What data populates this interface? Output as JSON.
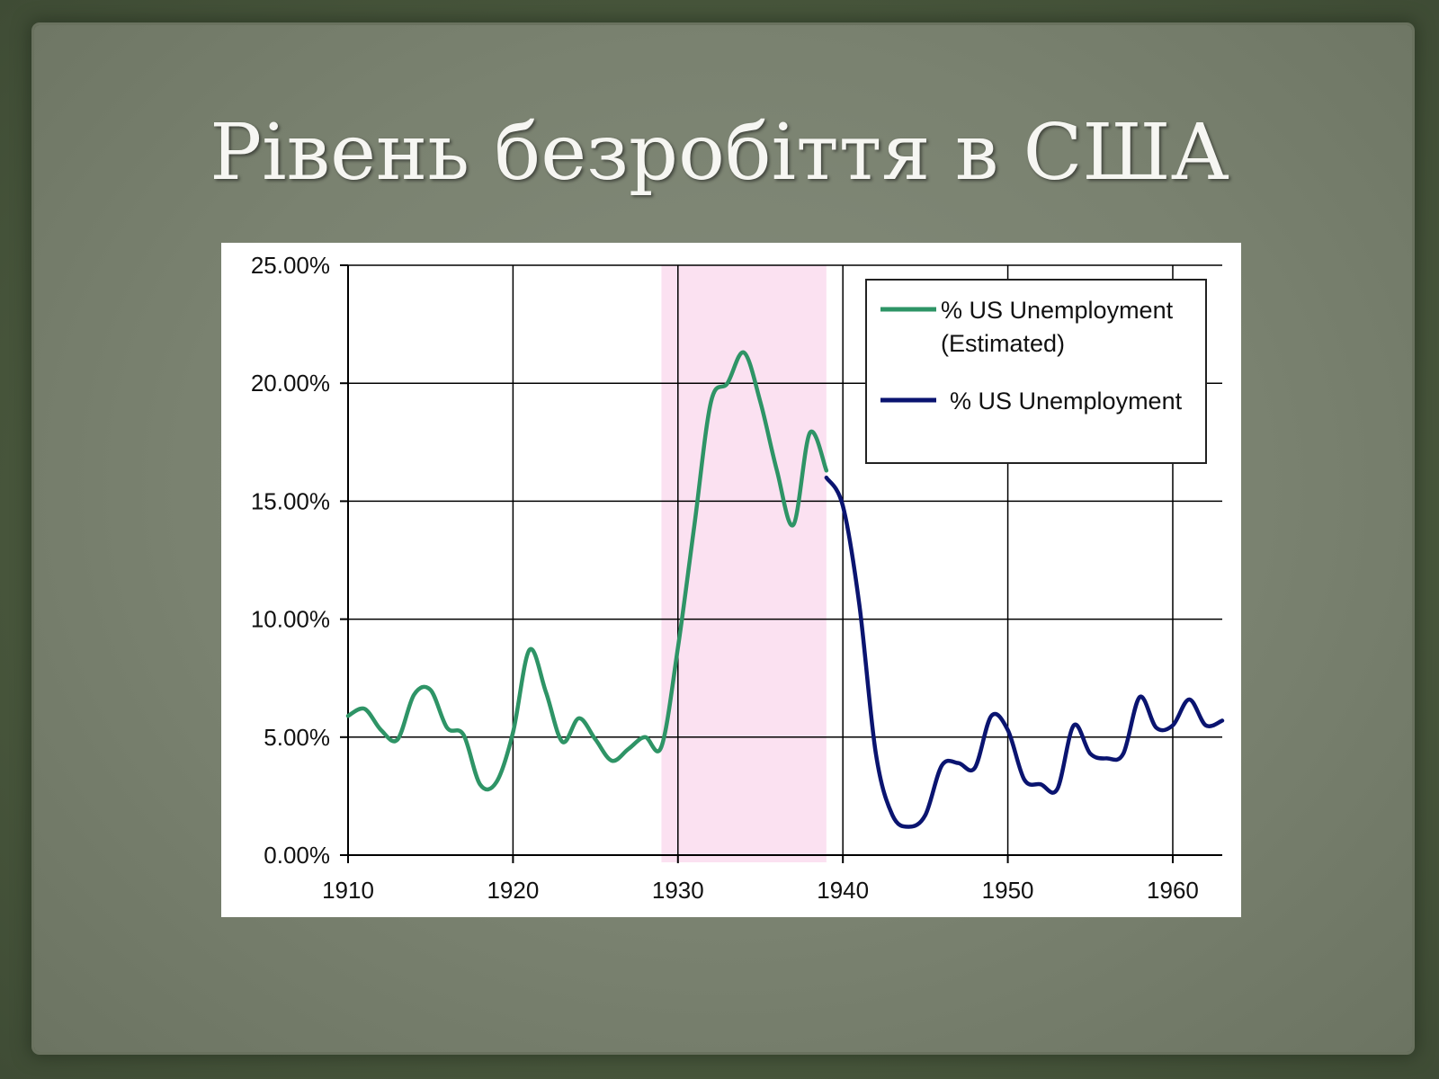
{
  "slide": {
    "title": "Рівень безробіття в США"
  },
  "colors": {
    "estimated": "#2e9466",
    "actual": "#0a1470",
    "highlight": "#fbe1f1",
    "grid": "#000000"
  },
  "chart_data": {
    "type": "line",
    "title": "",
    "xlabel": "",
    "ylabel": "",
    "xlim": [
      1910,
      1963
    ],
    "ylim": [
      0,
      25
    ],
    "xticks": [
      1910,
      1920,
      1930,
      1940,
      1950,
      1960
    ],
    "xtick_labels": [
      "1910",
      "1920",
      "1930",
      "1940",
      "1950",
      "1960"
    ],
    "yticks": [
      0,
      5,
      10,
      15,
      20,
      25
    ],
    "ytick_labels": [
      "0.00%",
      "5.00%",
      "10.00%",
      "15.00%",
      "20.00%",
      "25.00%"
    ],
    "grid": true,
    "legend_position": "top-right",
    "highlight_band": {
      "x_start": 1929,
      "x_end": 1939
    },
    "series": [
      {
        "name": "% US Unemployment (Estimated)",
        "name_lines": [
          "% US Unemployment",
          "(Estimated)"
        ],
        "x": [
          1910,
          1911,
          1912,
          1913,
          1914,
          1915,
          1916,
          1917,
          1918,
          1919,
          1920,
          1921,
          1922,
          1923,
          1924,
          1925,
          1926,
          1927,
          1928,
          1929,
          1930,
          1931,
          1932,
          1933,
          1934,
          1935,
          1936,
          1937,
          1938,
          1939
        ],
        "values": [
          5.9,
          6.2,
          5.3,
          4.9,
          6.8,
          7.0,
          5.4,
          5.1,
          3.0,
          3.1,
          5.2,
          8.7,
          6.9,
          4.8,
          5.8,
          4.9,
          4.0,
          4.5,
          5.0,
          4.6,
          8.8,
          14.0,
          19.2,
          20.0,
          21.3,
          19.2,
          16.3,
          14.0,
          17.9,
          16.3
        ]
      },
      {
        "name": "% US Unemployment",
        "x": [
          1939,
          1940,
          1941,
          1942,
          1943,
          1944,
          1945,
          1946,
          1947,
          1948,
          1949,
          1950,
          1951,
          1952,
          1953,
          1954,
          1955,
          1956,
          1957,
          1958,
          1959,
          1960,
          1961,
          1962,
          1963
        ],
        "values": [
          16.0,
          14.8,
          10.6,
          4.3,
          1.7,
          1.2,
          1.7,
          3.8,
          3.9,
          3.7,
          5.9,
          5.3,
          3.2,
          3.0,
          2.8,
          5.5,
          4.3,
          4.1,
          4.3,
          6.7,
          5.4,
          5.5,
          6.6,
          5.5,
          5.7
        ]
      }
    ]
  }
}
